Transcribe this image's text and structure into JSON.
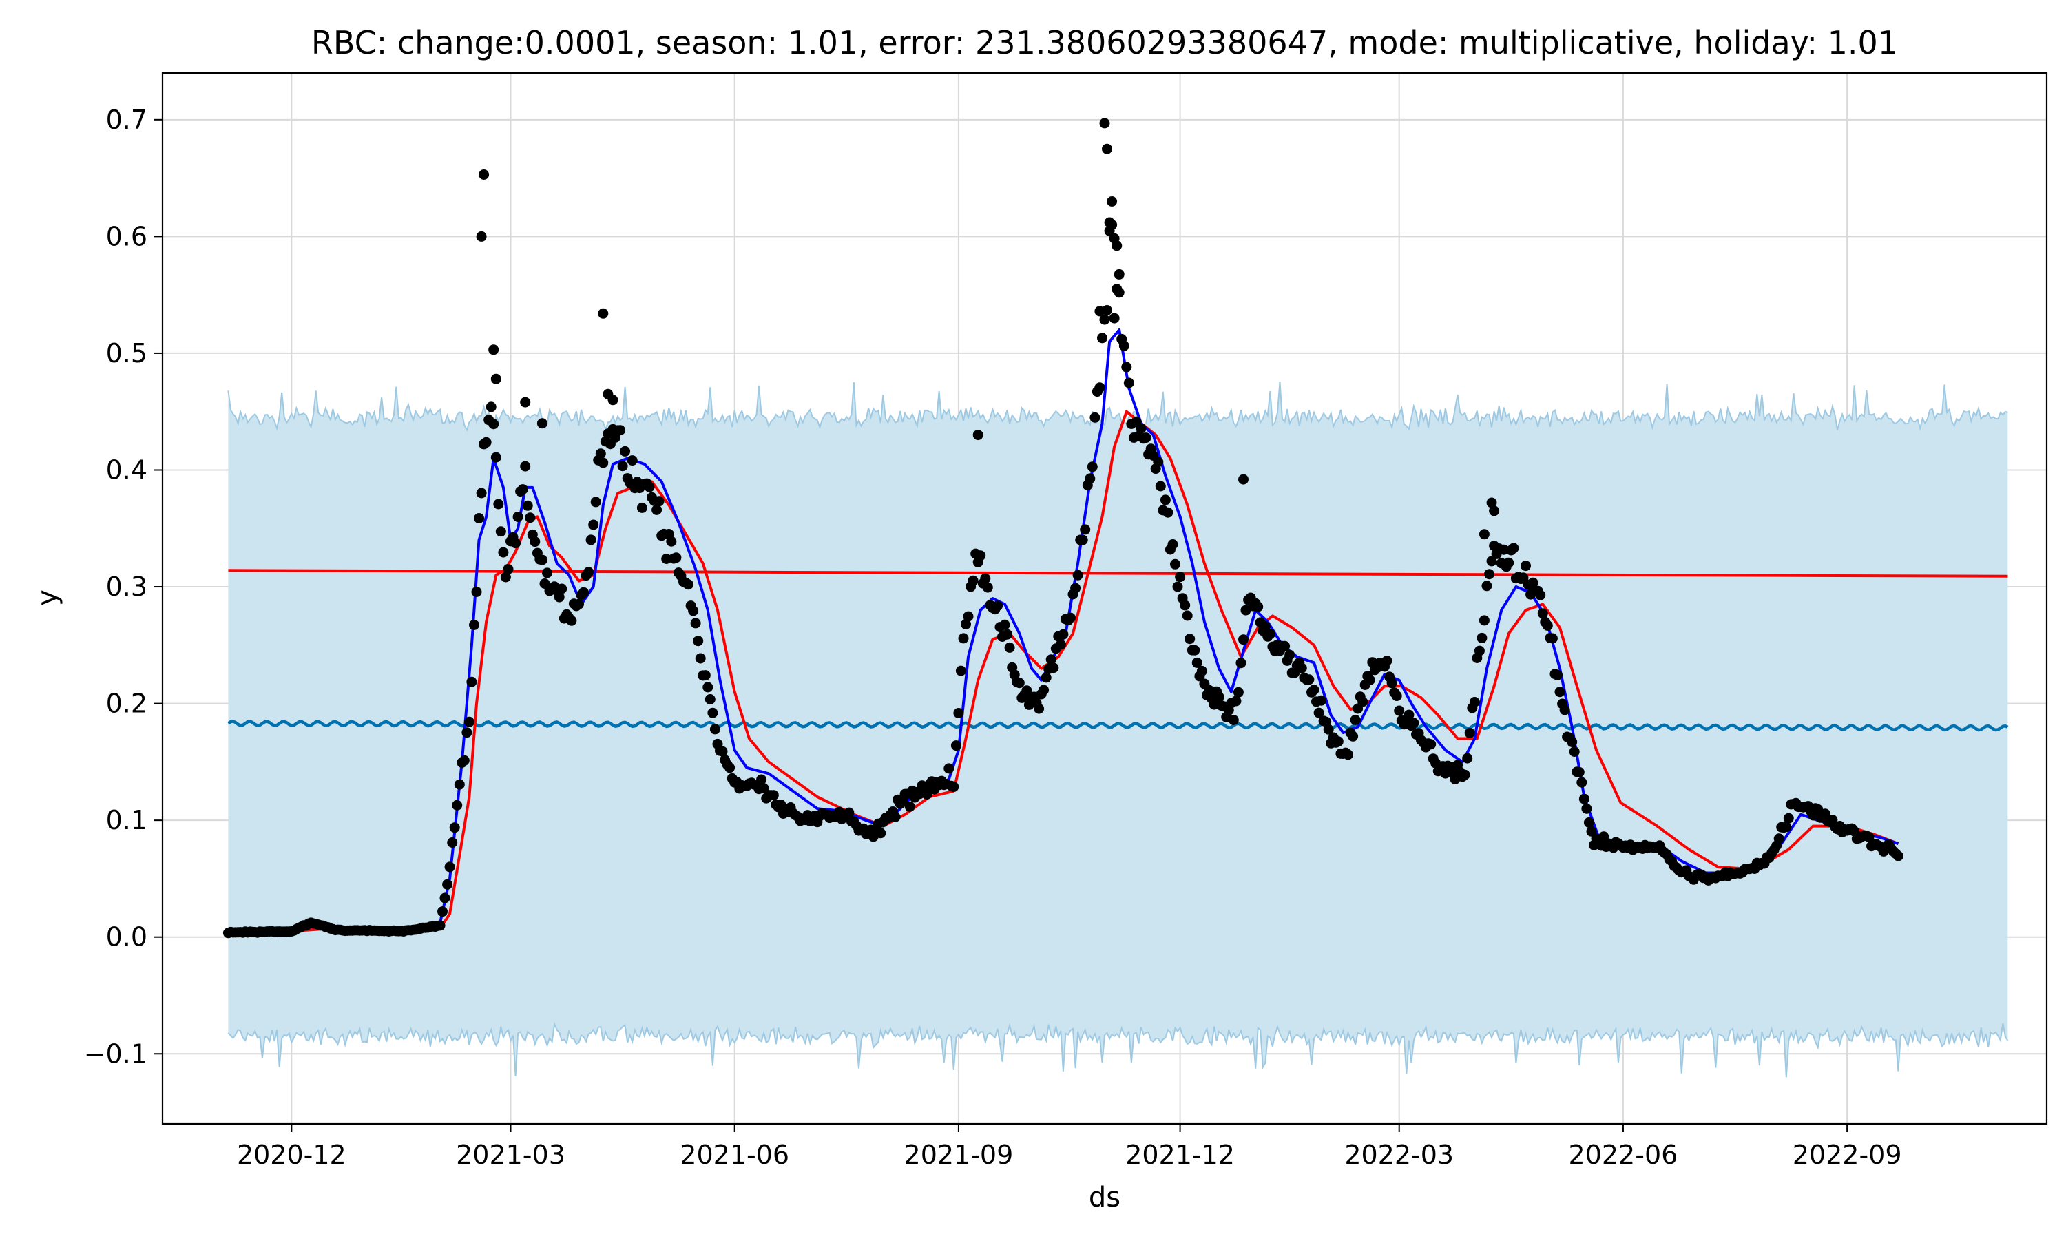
{
  "chart_data": {
    "type": "line",
    "title": "RBC: change:0.0001, season: 1.01, error: 231.38060293380647, mode: multiplicative, holiday: 1.01",
    "xlabel": "ds",
    "ylabel": "y",
    "xlim": [
      "2020-10-09",
      "2022-11-22"
    ],
    "ylim": [
      -0.16,
      0.74
    ],
    "grid": true,
    "x_ticks": [
      "2020-12",
      "2021-03",
      "2021-06",
      "2021-09",
      "2021-12",
      "2022-03",
      "2022-06",
      "2022-09"
    ],
    "y_ticks": [
      -0.1,
      0.0,
      0.1,
      0.2,
      0.3,
      0.4,
      0.5,
      0.6,
      0.7
    ],
    "colors": {
      "uncertainty_band": "#cce3f0",
      "uncertainty_edge": "#9ec9e2",
      "forecast": "#0072b2",
      "trend": "#ff0000",
      "rolling_short": "#0000ff",
      "rolling_long": "#ff0000",
      "observed": "#000000",
      "grid": "#d9d9d9"
    },
    "uncertainty": {
      "x_start": "2020-11-05",
      "x_end": "2022-11-06",
      "upper_mean": 0.445,
      "lower_mean": -0.085,
      "spread": 0.012
    },
    "forecast_line": [
      [
        "2020-11-05",
        0.183
      ],
      [
        "2021-06-01",
        0.182
      ],
      [
        "2022-01-01",
        0.181
      ],
      [
        "2022-11-06",
        0.179
      ]
    ],
    "trend_line": [
      [
        "2020-11-05",
        0.314
      ],
      [
        "2022-11-06",
        0.309
      ]
    ],
    "rolling_short": [
      [
        "2020-11-05",
        0.004
      ],
      [
        "2020-12-01",
        0.005
      ],
      [
        "2020-12-10",
        0.009
      ],
      [
        "2020-12-25",
        0.006
      ],
      [
        "2021-01-10",
        0.005
      ],
      [
        "2021-01-25",
        0.006
      ],
      [
        "2021-01-31",
        0.012
      ],
      [
        "2021-02-04",
        0.05
      ],
      [
        "2021-02-09",
        0.15
      ],
      [
        "2021-02-13",
        0.25
      ],
      [
        "2021-02-16",
        0.34
      ],
      [
        "2021-02-19",
        0.36
      ],
      [
        "2021-02-22",
        0.41
      ],
      [
        "2021-02-26",
        0.385
      ],
      [
        "2021-03-01",
        0.34
      ],
      [
        "2021-03-04",
        0.35
      ],
      [
        "2021-03-07",
        0.385
      ],
      [
        "2021-03-10",
        0.385
      ],
      [
        "2021-03-15",
        0.355
      ],
      [
        "2021-03-20",
        0.32
      ],
      [
        "2021-03-25",
        0.31
      ],
      [
        "2021-03-30",
        0.285
      ],
      [
        "2021-04-04",
        0.3
      ],
      [
        "2021-04-08",
        0.37
      ],
      [
        "2021-04-12",
        0.405
      ],
      [
        "2021-04-18",
        0.41
      ],
      [
        "2021-04-25",
        0.405
      ],
      [
        "2021-05-02",
        0.39
      ],
      [
        "2021-05-09",
        0.355
      ],
      [
        "2021-05-16",
        0.315
      ],
      [
        "2021-05-21",
        0.28
      ],
      [
        "2021-05-26",
        0.22
      ],
      [
        "2021-06-01",
        0.16
      ],
      [
        "2021-06-06",
        0.145
      ],
      [
        "2021-06-15",
        0.14
      ],
      [
        "2021-06-25",
        0.125
      ],
      [
        "2021-07-05",
        0.11
      ],
      [
        "2021-07-15",
        0.108
      ],
      [
        "2021-07-25",
        0.1
      ],
      [
        "2021-08-01",
        0.095
      ],
      [
        "2021-08-08",
        0.11
      ],
      [
        "2021-08-15",
        0.125
      ],
      [
        "2021-08-22",
        0.13
      ],
      [
        "2021-08-28",
        0.135
      ],
      [
        "2021-09-01",
        0.16
      ],
      [
        "2021-09-05",
        0.24
      ],
      [
        "2021-09-10",
        0.28
      ],
      [
        "2021-09-15",
        0.29
      ],
      [
        "2021-09-20",
        0.285
      ],
      [
        "2021-09-26",
        0.26
      ],
      [
        "2021-10-01",
        0.23
      ],
      [
        "2021-10-05",
        0.22
      ],
      [
        "2021-10-10",
        0.24
      ],
      [
        "2021-10-15",
        0.26
      ],
      [
        "2021-10-20",
        0.32
      ],
      [
        "2021-10-25",
        0.39
      ],
      [
        "2021-10-30",
        0.44
      ],
      [
        "2021-11-02",
        0.51
      ],
      [
        "2021-11-06",
        0.52
      ],
      [
        "2021-11-10",
        0.47
      ],
      [
        "2021-11-15",
        0.44
      ],
      [
        "2021-11-20",
        0.43
      ],
      [
        "2021-11-25",
        0.395
      ],
      [
        "2021-12-01",
        0.36
      ],
      [
        "2021-12-06",
        0.32
      ],
      [
        "2021-12-11",
        0.27
      ],
      [
        "2021-12-17",
        0.23
      ],
      [
        "2021-12-22",
        0.21
      ],
      [
        "2021-12-27",
        0.245
      ],
      [
        "2022-01-01",
        0.28
      ],
      [
        "2022-01-06",
        0.27
      ],
      [
        "2022-01-12",
        0.25
      ],
      [
        "2022-01-18",
        0.24
      ],
      [
        "2022-01-25",
        0.235
      ],
      [
        "2022-02-01",
        0.19
      ],
      [
        "2022-02-06",
        0.175
      ],
      [
        "2022-02-12",
        0.18
      ],
      [
        "2022-02-18",
        0.205
      ],
      [
        "2022-02-23",
        0.225
      ],
      [
        "2022-03-01",
        0.22
      ],
      [
        "2022-03-06",
        0.2
      ],
      [
        "2022-03-12",
        0.18
      ],
      [
        "2022-03-20",
        0.16
      ],
      [
        "2022-03-27",
        0.15
      ],
      [
        "2022-04-01",
        0.17
      ],
      [
        "2022-04-06",
        0.23
      ],
      [
        "2022-04-12",
        0.28
      ],
      [
        "2022-04-18",
        0.3
      ],
      [
        "2022-04-24",
        0.295
      ],
      [
        "2022-04-30",
        0.275
      ],
      [
        "2022-05-06",
        0.23
      ],
      [
        "2022-05-11",
        0.18
      ],
      [
        "2022-05-16",
        0.12
      ],
      [
        "2022-05-22",
        0.085
      ],
      [
        "2022-06-01",
        0.08
      ],
      [
        "2022-06-15",
        0.08
      ],
      [
        "2022-06-25",
        0.065
      ],
      [
        "2022-07-05",
        0.055
      ],
      [
        "2022-07-15",
        0.055
      ],
      [
        "2022-07-25",
        0.06
      ],
      [
        "2022-08-05",
        0.08
      ],
      [
        "2022-08-13",
        0.105
      ],
      [
        "2022-08-20",
        0.1
      ],
      [
        "2022-08-28",
        0.095
      ],
      [
        "2022-09-05",
        0.09
      ],
      [
        "2022-09-15",
        0.085
      ],
      [
        "2022-09-22",
        0.08
      ]
    ],
    "rolling_long": [
      [
        "2020-11-05",
        0.004
      ],
      [
        "2020-12-01",
        0.005
      ],
      [
        "2020-12-15",
        0.007
      ],
      [
        "2021-01-15",
        0.006
      ],
      [
        "2021-01-31",
        0.007
      ],
      [
        "2021-02-04",
        0.02
      ],
      [
        "2021-02-08",
        0.07
      ],
      [
        "2021-02-12",
        0.12
      ],
      [
        "2021-02-15",
        0.2
      ],
      [
        "2021-02-19",
        0.27
      ],
      [
        "2021-02-23",
        0.31
      ],
      [
        "2021-02-27",
        0.315
      ],
      [
        "2021-03-03",
        0.33
      ],
      [
        "2021-03-08",
        0.355
      ],
      [
        "2021-03-12",
        0.36
      ],
      [
        "2021-03-17",
        0.335
      ],
      [
        "2021-03-22",
        0.325
      ],
      [
        "2021-03-29",
        0.305
      ],
      [
        "2021-04-04",
        0.31
      ],
      [
        "2021-04-09",
        0.35
      ],
      [
        "2021-04-14",
        0.38
      ],
      [
        "2021-04-20",
        0.385
      ],
      [
        "2021-04-28",
        0.39
      ],
      [
        "2021-05-05",
        0.37
      ],
      [
        "2021-05-12",
        0.345
      ],
      [
        "2021-05-19",
        0.32
      ],
      [
        "2021-05-25",
        0.28
      ],
      [
        "2021-06-01",
        0.21
      ],
      [
        "2021-06-07",
        0.17
      ],
      [
        "2021-06-15",
        0.15
      ],
      [
        "2021-06-25",
        0.135
      ],
      [
        "2021-07-05",
        0.12
      ],
      [
        "2021-07-20",
        0.105
      ],
      [
        "2021-08-01",
        0.095
      ],
      [
        "2021-08-10",
        0.105
      ],
      [
        "2021-08-20",
        0.12
      ],
      [
        "2021-08-30",
        0.125
      ],
      [
        "2021-09-04",
        0.17
      ],
      [
        "2021-09-09",
        0.22
      ],
      [
        "2021-09-15",
        0.255
      ],
      [
        "2021-09-22",
        0.26
      ],
      [
        "2021-09-28",
        0.245
      ],
      [
        "2021-10-05",
        0.23
      ],
      [
        "2021-10-12",
        0.24
      ],
      [
        "2021-10-18",
        0.26
      ],
      [
        "2021-10-24",
        0.31
      ],
      [
        "2021-10-30",
        0.36
      ],
      [
        "2021-11-04",
        0.42
      ],
      [
        "2021-11-09",
        0.45
      ],
      [
        "2021-11-15",
        0.44
      ],
      [
        "2021-11-21",
        0.43
      ],
      [
        "2021-11-27",
        0.41
      ],
      [
        "2021-12-04",
        0.37
      ],
      [
        "2021-12-11",
        0.32
      ],
      [
        "2021-12-18",
        0.28
      ],
      [
        "2021-12-26",
        0.24
      ],
      [
        "2022-01-02",
        0.265
      ],
      [
        "2022-01-08",
        0.275
      ],
      [
        "2022-01-16",
        0.265
      ],
      [
        "2022-01-25",
        0.25
      ],
      [
        "2022-02-02",
        0.215
      ],
      [
        "2022-02-09",
        0.195
      ],
      [
        "2022-02-16",
        0.2
      ],
      [
        "2022-02-23",
        0.215
      ],
      [
        "2022-03-02",
        0.215
      ],
      [
        "2022-03-10",
        0.205
      ],
      [
        "2022-03-17",
        0.19
      ],
      [
        "2022-03-25",
        0.17
      ],
      [
        "2022-04-02",
        0.17
      ],
      [
        "2022-04-09",
        0.215
      ],
      [
        "2022-04-15",
        0.26
      ],
      [
        "2022-04-22",
        0.28
      ],
      [
        "2022-04-29",
        0.285
      ],
      [
        "2022-05-06",
        0.265
      ],
      [
        "2022-05-13",
        0.215
      ],
      [
        "2022-05-21",
        0.16
      ],
      [
        "2022-05-31",
        0.115
      ],
      [
        "2022-06-15",
        0.095
      ],
      [
        "2022-06-28",
        0.075
      ],
      [
        "2022-07-10",
        0.06
      ],
      [
        "2022-07-25",
        0.058
      ],
      [
        "2022-08-08",
        0.075
      ],
      [
        "2022-08-18",
        0.095
      ],
      [
        "2022-09-01",
        0.095
      ],
      [
        "2022-09-12",
        0.088
      ],
      [
        "2022-09-22",
        0.08
      ]
    ],
    "observed_anchors": [
      [
        "2020-11-05",
        0.004
      ],
      [
        "2020-12-01",
        0.005
      ],
      [
        "2020-12-09",
        0.012
      ],
      [
        "2020-12-20",
        0.006
      ],
      [
        "2021-01-15",
        0.005
      ],
      [
        "2021-01-31",
        0.01
      ],
      [
        "2021-02-04",
        0.06
      ],
      [
        "2021-02-08",
        0.13
      ],
      [
        "2021-02-12",
        0.18
      ],
      [
        "2021-02-15",
        0.3
      ],
      [
        "2021-02-18",
        0.43
      ],
      [
        "2021-02-21",
        0.45
      ],
      [
        "2021-02-24",
        0.38
      ],
      [
        "2021-02-27",
        0.31
      ],
      [
        "2021-03-02",
        0.34
      ],
      [
        "2021-03-07",
        0.39
      ],
      [
        "2021-03-12",
        0.33
      ],
      [
        "2021-03-19",
        0.29
      ],
      [
        "2021-03-26",
        0.27
      ],
      [
        "2021-04-02",
        0.32
      ],
      [
        "2021-04-07",
        0.42
      ],
      [
        "2021-04-13",
        0.43
      ],
      [
        "2021-04-20",
        0.4
      ],
      [
        "2021-04-28",
        0.38
      ],
      [
        "2021-05-06",
        0.33
      ],
      [
        "2021-05-14",
        0.29
      ],
      [
        "2021-05-20",
        0.22
      ],
      [
        "2021-05-26",
        0.16
      ],
      [
        "2021-06-02",
        0.13
      ],
      [
        "2021-06-10",
        0.13
      ],
      [
        "2021-06-20",
        0.11
      ],
      [
        "2021-07-01",
        0.1
      ],
      [
        "2021-07-15",
        0.105
      ],
      [
        "2021-07-28",
        0.085
      ],
      [
        "2021-08-08",
        0.115
      ],
      [
        "2021-08-20",
        0.13
      ],
      [
        "2021-08-30",
        0.135
      ],
      [
        "2021-09-03",
        0.25
      ],
      [
        "2021-09-08",
        0.33
      ],
      [
        "2021-09-14",
        0.285
      ],
      [
        "2021-09-20",
        0.26
      ],
      [
        "2021-09-26",
        0.21
      ],
      [
        "2021-10-04",
        0.2
      ],
      [
        "2021-10-10",
        0.24
      ],
      [
        "2021-10-18",
        0.29
      ],
      [
        "2021-10-24",
        0.37
      ],
      [
        "2021-10-30",
        0.5
      ],
      [
        "2021-11-03",
        0.63
      ],
      [
        "2021-11-07",
        0.54
      ],
      [
        "2021-11-12",
        0.43
      ],
      [
        "2021-11-18",
        0.43
      ],
      [
        "2021-11-25",
        0.37
      ],
      [
        "2021-12-03",
        0.28
      ],
      [
        "2021-12-10",
        0.22
      ],
      [
        "2021-12-17",
        0.2
      ],
      [
        "2021-12-24",
        0.19
      ],
      [
        "2021-12-29",
        0.3
      ],
      [
        "2022-01-05",
        0.26
      ],
      [
        "2022-01-14",
        0.24
      ],
      [
        "2022-01-24",
        0.22
      ],
      [
        "2022-02-01",
        0.17
      ],
      [
        "2022-02-08",
        0.16
      ],
      [
        "2022-02-16",
        0.22
      ],
      [
        "2022-02-23",
        0.24
      ],
      [
        "2022-03-02",
        0.19
      ],
      [
        "2022-03-10",
        0.17
      ],
      [
        "2022-03-19",
        0.145
      ],
      [
        "2022-03-28",
        0.14
      ],
      [
        "2022-04-03",
        0.25
      ],
      [
        "2022-04-09",
        0.33
      ],
      [
        "2022-04-16",
        0.32
      ],
      [
        "2022-04-24",
        0.3
      ],
      [
        "2022-05-01",
        0.27
      ],
      [
        "2022-05-08",
        0.19
      ],
      [
        "2022-05-14",
        0.14
      ],
      [
        "2022-05-20",
        0.08
      ],
      [
        "2022-06-01",
        0.078
      ],
      [
        "2022-06-15",
        0.078
      ],
      [
        "2022-06-25",
        0.055
      ],
      [
        "2022-07-05",
        0.05
      ],
      [
        "2022-07-20",
        0.055
      ],
      [
        "2022-08-01",
        0.07
      ],
      [
        "2022-08-10",
        0.115
      ],
      [
        "2022-08-18",
        0.11
      ],
      [
        "2022-08-28",
        0.095
      ],
      [
        "2022-09-08",
        0.085
      ],
      [
        "2022-09-22",
        0.073
      ]
    ],
    "observed_outliers": [
      [
        "2021-02-18",
        0.653
      ],
      [
        "2021-02-17",
        0.6
      ],
      [
        "2021-02-22",
        0.503
      ],
      [
        "2021-02-23",
        0.478
      ],
      [
        "2021-03-07",
        0.458
      ],
      [
        "2021-03-14",
        0.44
      ],
      [
        "2021-04-08",
        0.534
      ],
      [
        "2021-04-10",
        0.465
      ],
      [
        "2021-04-12",
        0.46
      ],
      [
        "2021-09-09",
        0.43
      ],
      [
        "2021-10-31",
        0.697
      ],
      [
        "2021-11-01",
        0.675
      ],
      [
        "2021-11-02",
        0.612
      ],
      [
        "2021-11-03",
        0.61
      ],
      [
        "2021-11-05",
        0.555
      ],
      [
        "2021-11-06",
        0.552
      ],
      [
        "2021-10-29",
        0.536
      ],
      [
        "2021-11-04",
        0.53
      ],
      [
        "2021-12-27",
        0.392
      ],
      [
        "2022-04-08",
        0.372
      ],
      [
        "2022-04-09",
        0.365
      ],
      [
        "2022-04-05",
        0.345
      ]
    ]
  }
}
